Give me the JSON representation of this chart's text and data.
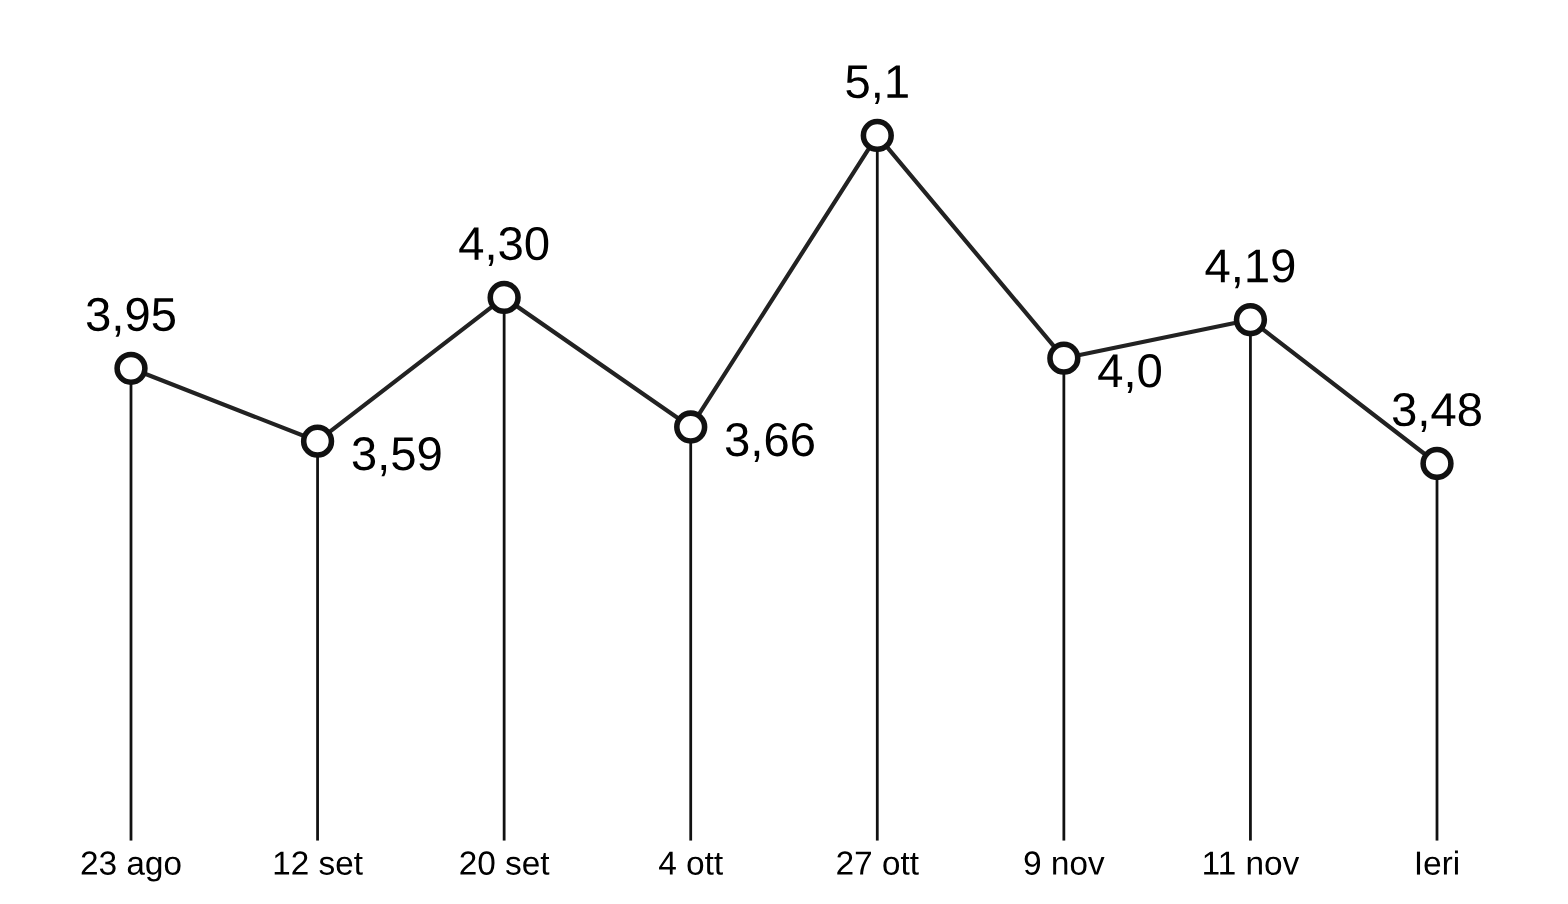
{
  "chart_data": {
    "type": "line",
    "categories": [
      "23 ago",
      "12 set",
      "20 set",
      "4 ott",
      "27 ott",
      "9 nov",
      "11 nov",
      "Ieri"
    ],
    "series": [
      {
        "color": "#222222",
        "values": [
          3.95,
          3.59,
          4.3,
          3.66,
          5.1,
          4.0,
          4.19,
          3.48
        ],
        "value_labels": [
          "3,95",
          "3,59",
          "4,30",
          "3,66",
          "5,1",
          "4,0",
          "4,19",
          "3,48"
        ]
      }
    ],
    "marker": "circle",
    "line_style": "solid",
    "grid": "x",
    "legend": false
  }
}
